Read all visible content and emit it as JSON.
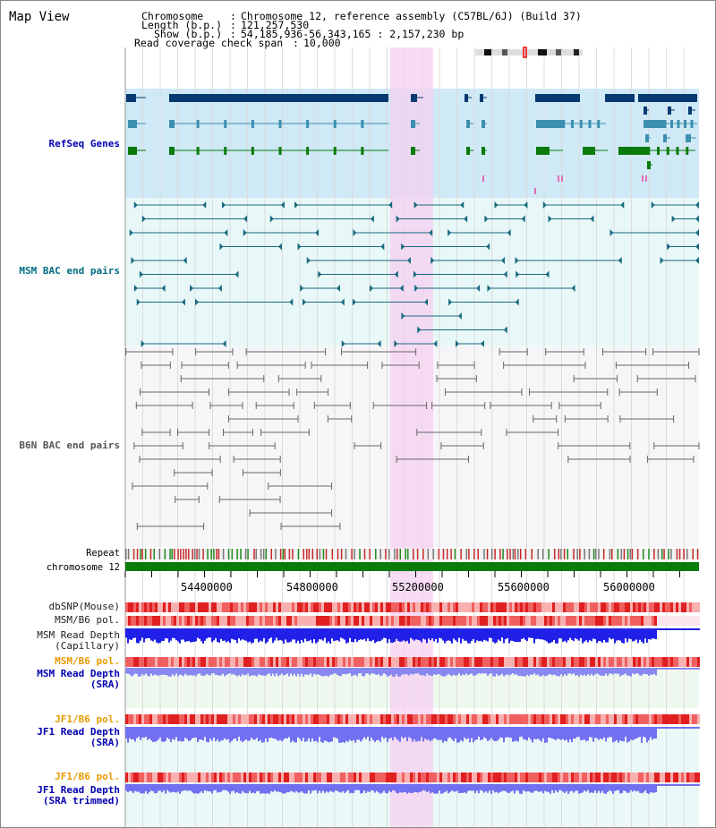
{
  "page_title": "Map View",
  "header": {
    "chromosome_key": "Chromosome",
    "chromosome_val": "Chromosome 12, reference assembly (C57BL/6J) (Build 37)",
    "length_key": "Length (b.p.)",
    "length_val": "121,257,530",
    "show_key": "Show (b.p.)",
    "show_val": "54,185,936-56,343,165 : 2,157,230 bp",
    "coverage_key": "Read coverage check span",
    "coverage_val": "10,000"
  },
  "tracks": {
    "refseq": "RefSeq Genes",
    "msm_bac": "MSM BAC end pairs",
    "b6n_bac": "B6N BAC end pairs",
    "repeat": "Repeat",
    "chromosome": "chromosome 12",
    "dbsnp": "dbSNP(Mouse)",
    "msm_b6_pol_1": "MSM/B6 pol.",
    "msm_depth_cap_1": "MSM Read Depth",
    "msm_depth_cap_2": "(Capillary)",
    "msm_b6_pol_2": "MSM/B6 pol.",
    "msm_depth_sra_1": "MSM Read Depth",
    "msm_depth_sra_2": "(SRA)",
    "jf1_b6_pol_1": "JF1/B6 pol.",
    "jf1_depth_sra_1": "JF1 Read Depth",
    "jf1_depth_sra_2": "(SRA)",
    "jf1_b6_pol_2": "JF1/B6 pol.",
    "jf1_depth_trim_1": "JF1 Read Depth",
    "jf1_depth_trim_2": "(SRA trimmed)"
  },
  "axis_ticks": [
    "54400000",
    "54800000",
    "55200000",
    "55600000",
    "56000000"
  ],
  "colors": {
    "highlight": "#f6d0f0",
    "refseq_bg": "#cfe9f6",
    "gene_dark": "#063a70",
    "gene_mid": "#3d8fb0",
    "gene_green": "#0a7a0a",
    "bac_teal": "#1a6a80",
    "bac_gray": "#555555",
    "depth_blue": "#2020e0",
    "depth_light": "#7070f0",
    "pol_red": "#e83030",
    "chrom_green": "#0a7a0a"
  }
}
